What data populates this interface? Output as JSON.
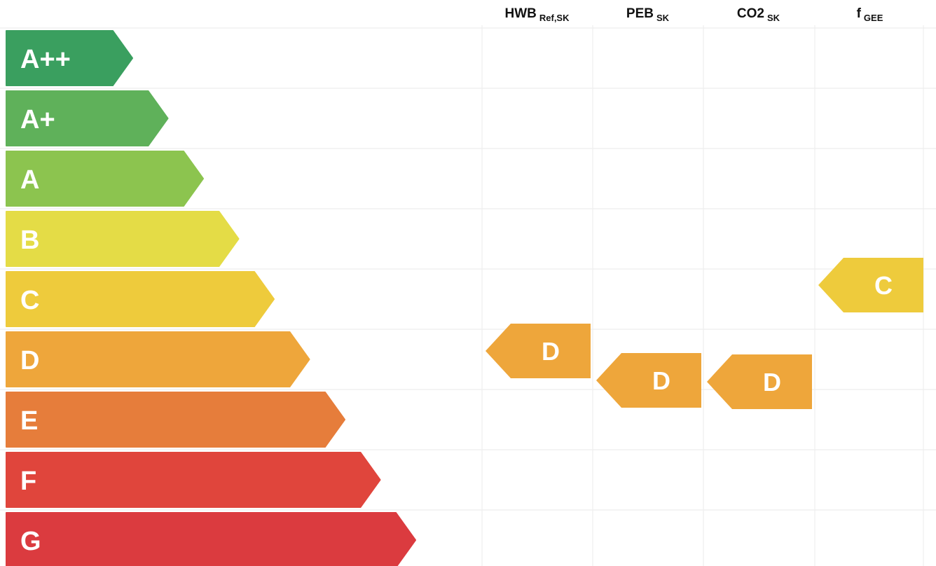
{
  "chart_data": {
    "type": "table",
    "classes": [
      {
        "label": "A++",
        "color": "#3a9f5f"
      },
      {
        "label": "A+",
        "color": "#5fb15a"
      },
      {
        "label": "A",
        "color": "#8cc44f"
      },
      {
        "label": "B",
        "color": "#e4dc46"
      },
      {
        "label": "C",
        "color": "#eecb3c"
      },
      {
        "label": "D",
        "color": "#eea63b"
      },
      {
        "label": "E",
        "color": "#e67d3b"
      },
      {
        "label": "F",
        "color": "#e0453c"
      },
      {
        "label": "G",
        "color": "#db3b3f"
      }
    ],
    "columns": [
      {
        "main": "HWB",
        "sub": "Ref,SK",
        "rating": "D",
        "color": "#eea63b"
      },
      {
        "main": "PEB",
        "sub": "SK",
        "rating": "D",
        "color": "#eea63b"
      },
      {
        "main": "CO2",
        "sub": "SK",
        "rating": "D",
        "color": "#eea63b"
      },
      {
        "main": "f",
        "sub": "GEE",
        "rating": "C",
        "color": "#eecb3c"
      }
    ],
    "grid": true
  }
}
